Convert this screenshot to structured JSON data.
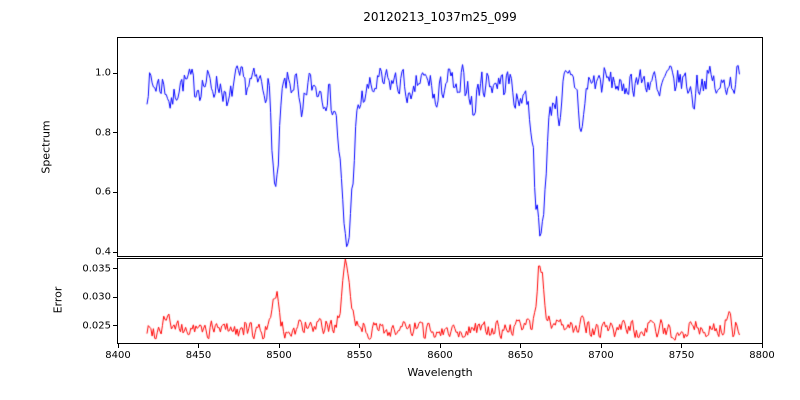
{
  "figure": {
    "title": "20120213_1037m25_099",
    "xlabel": "Wavelength",
    "background": "#ffffff",
    "axis_color": "#000000"
  },
  "x_axis": {
    "ticks": [
      8400,
      8450,
      8500,
      8550,
      8600,
      8650,
      8700,
      8750,
      8800
    ],
    "tick_labels": [
      "8400",
      "8450",
      "8500",
      "8550",
      "8600",
      "8650",
      "8700",
      "8750",
      "8800"
    ]
  },
  "chart_data": [
    {
      "type": "line",
      "name": "spectrum",
      "ylabel": "Spectrum",
      "line_color": "#0000ff",
      "xlim": [
        8400,
        8800
      ],
      "ylim": [
        0.387,
        1.118
      ],
      "yticks": [
        1.0,
        0.8,
        0.6,
        0.4
      ],
      "ytick_labels": [
        "1.0",
        "0.8",
        "0.6",
        "0.4"
      ],
      "x_range": [
        8418,
        8786
      ],
      "continuum": 0.97,
      "continuum_slope": 4e-05,
      "noise_amplitude": 0.07,
      "direction": "absorption",
      "features": [
        {
          "center": 8433,
          "amplitude": 0.08,
          "sigma": 1.5
        },
        {
          "center": 8468,
          "amplitude": 0.1,
          "sigma": 1.5
        },
        {
          "center": 8498.0,
          "amplitude": 0.38,
          "sigma": 2.0
        },
        {
          "center": 8514,
          "amplitude": 0.14,
          "sigma": 1.5
        },
        {
          "center": 8542.1,
          "amplitude": 0.46,
          "sigma": 3.2
        },
        {
          "center": 8542.1,
          "amplitude": 0.09,
          "sigma": 9.0
        },
        {
          "center": 8582,
          "amplitude": 0.1,
          "sigma": 1.5
        },
        {
          "center": 8598,
          "amplitude": 0.09,
          "sigma": 1.5
        },
        {
          "center": 8611,
          "amplitude": 0.07,
          "sigma": 1.2
        },
        {
          "center": 8621,
          "amplitude": 0.11,
          "sigma": 1.5
        },
        {
          "center": 8648,
          "amplitude": 0.07,
          "sigma": 1.2
        },
        {
          "center": 8662.2,
          "amplitude": 0.45,
          "sigma": 3.0
        },
        {
          "center": 8662.2,
          "amplitude": 0.08,
          "sigma": 8.0
        },
        {
          "center": 8674,
          "amplitude": 0.08,
          "sigma": 1.3
        },
        {
          "center": 8688,
          "amplitude": 0.17,
          "sigma": 1.6
        },
        {
          "center": 8713,
          "amplitude": 0.06,
          "sigma": 1.3
        },
        {
          "center": 8736,
          "amplitude": 0.07,
          "sigma": 1.4
        },
        {
          "center": 8757,
          "amplitude": 0.07,
          "sigma": 1.3
        },
        {
          "center": 8773,
          "amplitude": 0.06,
          "sigma": 1.2
        }
      ]
    },
    {
      "type": "line",
      "name": "error",
      "ylabel": "Error",
      "line_color": "#ff0000",
      "xlim": [
        8400,
        8800
      ],
      "ylim": [
        0.022,
        0.0367
      ],
      "yticks": [
        0.035,
        0.03,
        0.025
      ],
      "ytick_labels": [
        "0.035",
        "0.030",
        "0.025"
      ],
      "x_range": [
        8418,
        8786
      ],
      "continuum": 0.0243,
      "continuum_slope": 0,
      "noise_amplitude": 0.0022,
      "direction": "emission",
      "features": [
        {
          "center": 8430,
          "amplitude": 0.0028,
          "sigma": 2.0
        },
        {
          "center": 8468,
          "amplitude": 0.001,
          "sigma": 1.5
        },
        {
          "center": 8498.0,
          "amplitude": 0.0068,
          "sigma": 1.6
        },
        {
          "center": 8514,
          "amplitude": 0.001,
          "sigma": 1.5
        },
        {
          "center": 8542.1,
          "amplitude": 0.0104,
          "sigma": 2.2
        },
        {
          "center": 8542.1,
          "amplitude": 0.0013,
          "sigma": 8.0
        },
        {
          "center": 8621,
          "amplitude": 0.001,
          "sigma": 1.5
        },
        {
          "center": 8662.2,
          "amplitude": 0.0102,
          "sigma": 2.0
        },
        {
          "center": 8662.2,
          "amplitude": 0.0013,
          "sigma": 7.0
        },
        {
          "center": 8688,
          "amplitude": 0.0028,
          "sigma": 1.6
        },
        {
          "center": 8757,
          "amplitude": 0.0012,
          "sigma": 1.5
        },
        {
          "center": 8779,
          "amplitude": 0.0035,
          "sigma": 1.5
        }
      ]
    }
  ]
}
